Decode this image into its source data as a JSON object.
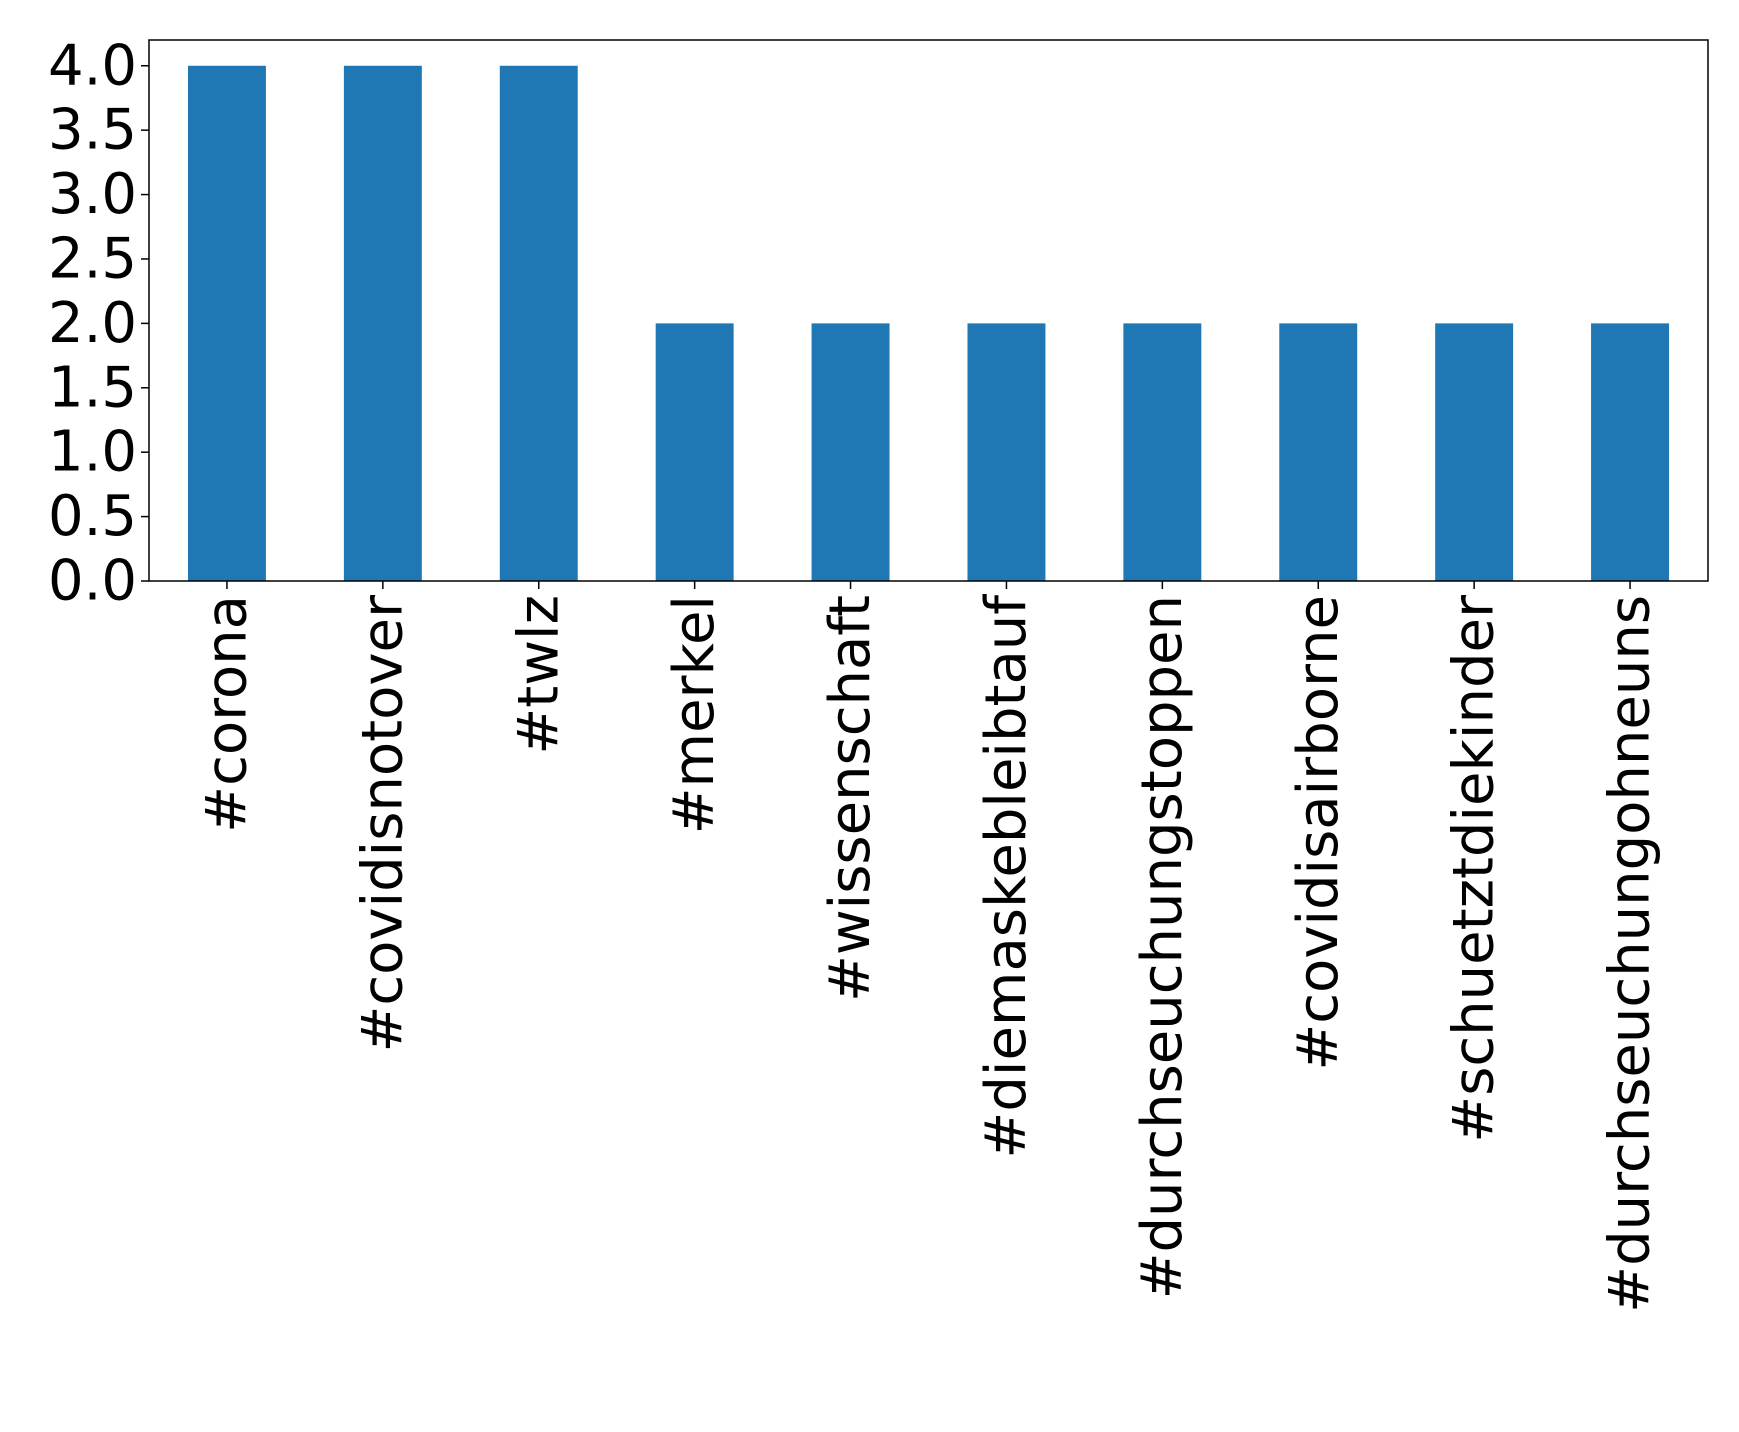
{
  "chart_data": {
    "type": "bar",
    "categories": [
      "#corona",
      "#covidisnotover",
      "#twlz",
      "#merkel",
      "#wissenschaft",
      "#diemaskebleibtauf",
      "#durchseuchungstoppen",
      "#covidisairborne",
      "#schuetztdiekinder",
      "#durchseuchungohneuns"
    ],
    "values": [
      4,
      4,
      4,
      2,
      2,
      2,
      2,
      2,
      2,
      2
    ],
    "color": "#1f77b4",
    "ylim": [
      0,
      4.2
    ],
    "yticks": [
      {
        "value": 0,
        "label": "0.0"
      },
      {
        "value": 0.5,
        "label": "0.5"
      },
      {
        "value": 1,
        "label": "1.0"
      },
      {
        "value": 1.5,
        "label": "1.5"
      },
      {
        "value": 2,
        "label": "2.0"
      },
      {
        "value": 2.5,
        "label": "2.5"
      },
      {
        "value": 3,
        "label": "3.0"
      },
      {
        "value": 3.5,
        "label": "3.5"
      },
      {
        "value": 4,
        "label": "4.0"
      }
    ],
    "grid": false
  }
}
